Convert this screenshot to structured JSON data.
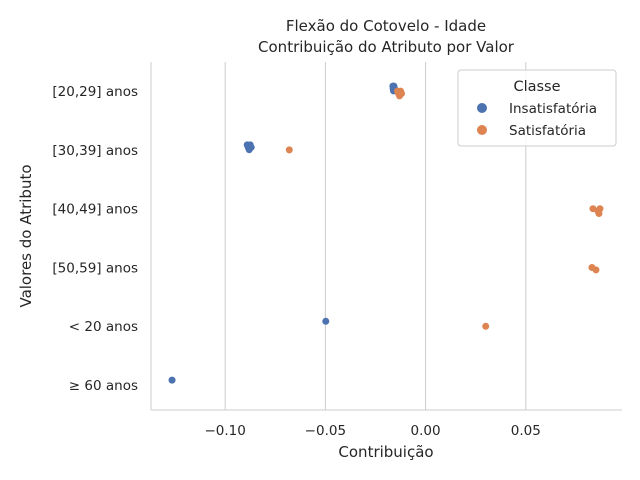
{
  "chart_data": {
    "type": "scatter",
    "title": [
      "Flexão do Cotovelo - Idade",
      "Contribuição do Atributo por Valor"
    ],
    "xlabel": "Contribuição",
    "ylabel": "Valores do Atributo",
    "categories": [
      "[20,29] anos",
      "[30,39] anos",
      "[40,49] anos",
      "[50,59] anos",
      "< 20 anos",
      "≥ 60 anos"
    ],
    "x_ticks": [
      -0.1,
      -0.05,
      0.0,
      0.05
    ],
    "x_tick_labels": [
      "−0.10",
      "−0.05",
      "0.00",
      "0.05"
    ],
    "xlim": [
      -0.137,
      0.098
    ],
    "grid": "vertical",
    "legend": {
      "title": "Classe",
      "placement": "top-right"
    },
    "series": [
      {
        "name": "Insatisfatória",
        "color": "#4c72b0",
        "points": [
          {
            "category": "[20,29] anos",
            "x": [
              -0.0163,
              -0.0162,
              -0.016,
              -0.0158,
              -0.0155
            ]
          },
          {
            "category": "[30,39] anos",
            "x": [
              -0.089,
              -0.0885,
              -0.088,
              -0.0875,
              -0.087
            ]
          },
          {
            "category": "< 20 anos",
            "x": [
              -0.0498
            ]
          },
          {
            "category": "≥ 60 anos",
            "x": [
              -0.1265
            ]
          }
        ]
      },
      {
        "name": "Satisfatória",
        "color": "#dd8452",
        "points": [
          {
            "category": "[20,29] anos",
            "x": [
              -0.014,
              -0.0135,
              -0.013,
              -0.0125,
              -0.012
            ]
          },
          {
            "category": "[30,39] anos",
            "x": [
              -0.068
            ]
          },
          {
            "category": "[40,49] anos",
            "x": [
              0.0835,
              0.086,
              0.0865,
              0.087
            ]
          },
          {
            "category": "[50,59] anos",
            "x": [
              0.083,
              0.085
            ]
          },
          {
            "category": "< 20 anos",
            "x": [
              0.03
            ]
          }
        ]
      }
    ]
  }
}
